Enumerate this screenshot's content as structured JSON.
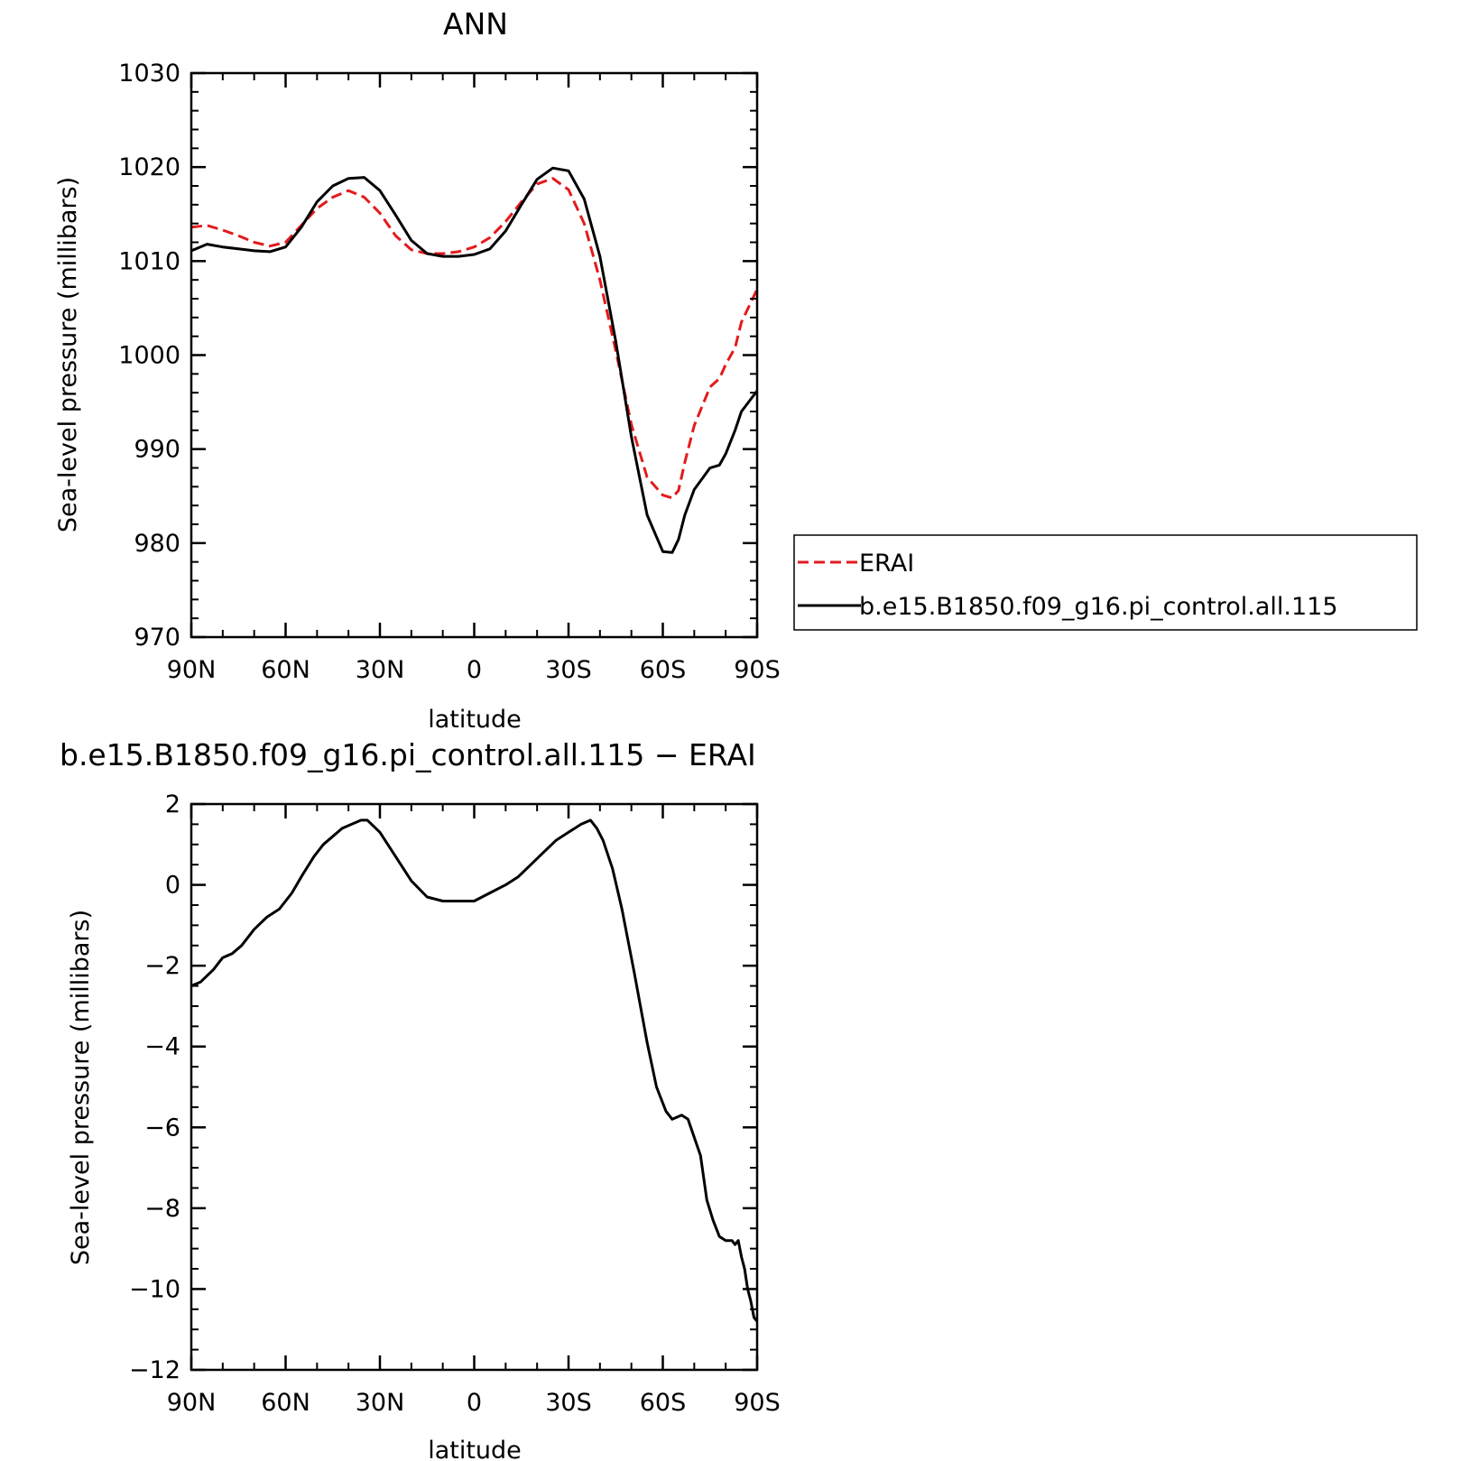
{
  "chart_data": [
    {
      "type": "line",
      "title": "ANN",
      "xlabel": "latitude",
      "ylabel": "Sea-level pressure (millibars)",
      "xlim": [
        90,
        -90
      ],
      "ylim": [
        970,
        1030
      ],
      "yticks": [
        970,
        980,
        990,
        1000,
        1010,
        1020,
        1030
      ],
      "xticks": [
        90,
        60,
        30,
        0,
        -30,
        -60,
        -90
      ],
      "xtick_labels": [
        "90N",
        "60N",
        "30N",
        "0",
        "30S",
        "60S",
        "90S"
      ],
      "grid": false,
      "legend_position": "right",
      "series": [
        {
          "name": "ERAI",
          "color": "#e31a1c",
          "dash": "dashed",
          "x": [
            90,
            85,
            80,
            75,
            70,
            65,
            60,
            55,
            50,
            45,
            40,
            35,
            30,
            25,
            20,
            15,
            10,
            5,
            0,
            -5,
            -10,
            -15,
            -20,
            -25,
            -30,
            -35,
            -40,
            -45,
            -50,
            -55,
            -60,
            -63,
            -65,
            -67,
            -70,
            -75,
            -78,
            -80,
            -83,
            -85,
            -90
          ],
          "y": [
            1013.6,
            1013.8,
            1013.3,
            1012.7,
            1012.0,
            1011.6,
            1012.0,
            1013.8,
            1015.6,
            1016.8,
            1017.5,
            1016.8,
            1015.1,
            1012.7,
            1011.2,
            1010.8,
            1010.8,
            1011.0,
            1011.5,
            1012.5,
            1014.2,
            1016.3,
            1018.2,
            1018.8,
            1017.6,
            1014.0,
            1008.0,
            1000.5,
            992.6,
            987.0,
            985.1,
            984.8,
            985.6,
            988.6,
            992.5,
            996.6,
            997.5,
            999.0,
            1000.8,
            1003.5,
            1007.0
          ]
        },
        {
          "name": "b.e15.B1850.f09_g16.pi_control.all.115",
          "color": "#000000",
          "dash": "solid",
          "x": [
            90,
            85,
            80,
            75,
            70,
            65,
            60,
            55,
            50,
            45,
            40,
            35,
            30,
            25,
            20,
            15,
            10,
            5,
            0,
            -5,
            -10,
            -15,
            -20,
            -25,
            -30,
            -35,
            -40,
            -45,
            -50,
            -55,
            -60,
            -63,
            -65,
            -67,
            -70,
            -75,
            -78,
            -80,
            -83,
            -85,
            -90
          ],
          "y": [
            1011.1,
            1011.8,
            1011.5,
            1011.3,
            1011.1,
            1011.0,
            1011.5,
            1013.6,
            1016.3,
            1018.0,
            1018.8,
            1018.9,
            1017.5,
            1014.9,
            1012.2,
            1010.8,
            1010.5,
            1010.5,
            1010.7,
            1011.3,
            1013.2,
            1016.0,
            1018.7,
            1019.9,
            1019.6,
            1016.6,
            1010.5,
            1001.5,
            991.3,
            983.0,
            979.1,
            979.0,
            980.4,
            983.0,
            985.7,
            988.0,
            988.3,
            989.5,
            992.0,
            994.0,
            996.2
          ]
        }
      ]
    },
    {
      "type": "line",
      "title": "b.e15.B1850.f09_g16.pi_control.all.115 − ERAI",
      "xlabel": "latitude",
      "ylabel": "Sea-level pressure (millibars)",
      "xlim": [
        90,
        -90
      ],
      "ylim": [
        -12,
        2
      ],
      "yticks": [
        -12,
        -10,
        -8,
        -6,
        -4,
        -2,
        0,
        2
      ],
      "ytick_labels": [
        "−12",
        "−10",
        "−8",
        "−6",
        "−4",
        "−2",
        "0",
        "2"
      ],
      "xticks": [
        90,
        60,
        30,
        0,
        -30,
        -60,
        -90
      ],
      "xtick_labels": [
        "90N",
        "60N",
        "30N",
        "0",
        "30S",
        "60S",
        "90S"
      ],
      "grid": false,
      "series": [
        {
          "color": "#000000",
          "dash": "solid",
          "x": [
            90,
            87,
            83,
            80,
            77,
            74,
            70,
            66,
            62,
            58,
            55,
            51,
            48,
            45,
            42,
            39,
            36,
            34,
            30,
            25,
            20,
            15,
            10,
            5,
            0,
            -5,
            -10,
            -14,
            -18,
            -22,
            -26,
            -30,
            -34,
            -37,
            -39,
            -41,
            -44,
            -47,
            -51,
            -55,
            -58,
            -61,
            -63,
            -66,
            -68,
            -72,
            -74,
            -76,
            -78,
            -80,
            -82,
            -83,
            -84,
            -85,
            -86,
            -87,
            -88,
            -89,
            -90
          ],
          "y": [
            -2.5,
            -2.4,
            -2.1,
            -1.8,
            -1.7,
            -1.5,
            -1.1,
            -0.8,
            -0.6,
            -0.2,
            0.2,
            0.7,
            1.0,
            1.2,
            1.4,
            1.5,
            1.6,
            1.6,
            1.3,
            0.7,
            0.1,
            -0.3,
            -0.4,
            -0.4,
            -0.4,
            -0.2,
            0.0,
            0.2,
            0.5,
            0.8,
            1.1,
            1.3,
            1.5,
            1.6,
            1.4,
            1.1,
            0.4,
            -0.6,
            -2.2,
            -3.9,
            -5.0,
            -5.6,
            -5.8,
            -5.7,
            -5.8,
            -6.7,
            -7.8,
            -8.3,
            -8.7,
            -8.8,
            -8.8,
            -8.9,
            -8.8,
            -9.2,
            -9.5,
            -10.0,
            -10.3,
            -10.7,
            -10.8
          ]
        }
      ]
    }
  ]
}
